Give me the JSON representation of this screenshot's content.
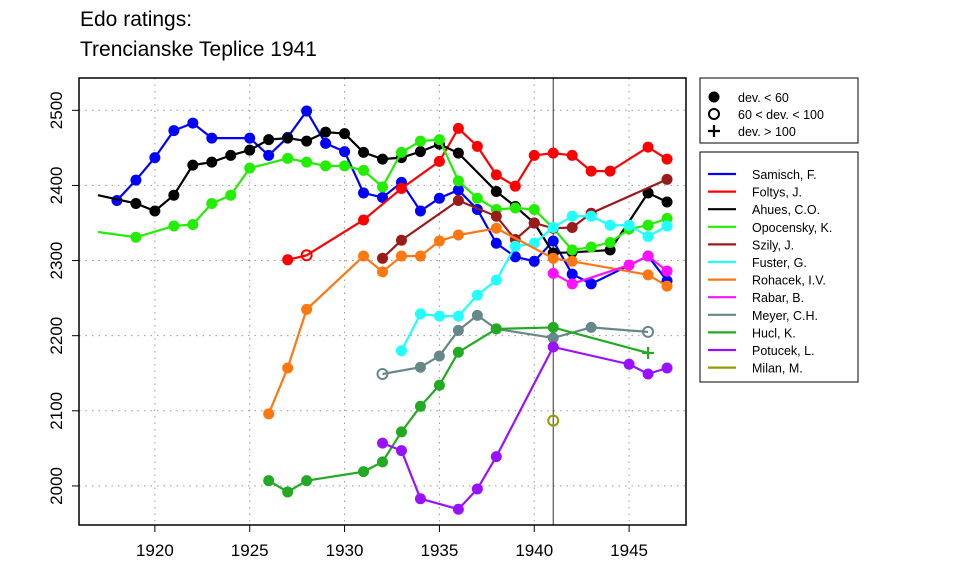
{
  "chart_data": {
    "type": "line",
    "title": [
      "Edo ratings:",
      "Trencianske Teplice 1941"
    ],
    "xlabel": "",
    "ylabel": "",
    "xlim": [
      1916,
      1948
    ],
    "ylim": [
      1948,
      2543
    ],
    "xticks": [
      1920,
      1925,
      1930,
      1935,
      1940,
      1945
    ],
    "yticks": [
      2000,
      2100,
      2200,
      2300,
      2400,
      2500
    ],
    "grid": true,
    "vline": 1941,
    "marker_legend": [
      {
        "marker": "f",
        "label": "dev. < 60"
      },
      {
        "marker": "o",
        "label": "60 < dev. < 100"
      },
      {
        "marker": "+",
        "label": "dev. > 100"
      }
    ],
    "series": [
      {
        "name": "Samisch, F.",
        "color": "#0000ff",
        "points": [
          [
            1918,
            2380,
            "f"
          ],
          [
            1919,
            2407,
            "f"
          ],
          [
            1920,
            2437,
            "f"
          ],
          [
            1921,
            2473,
            "f"
          ],
          [
            1922,
            2483,
            "f"
          ],
          [
            1923,
            2463,
            "f"
          ],
          [
            1925,
            2463,
            "f"
          ],
          [
            1926,
            2440,
            "f"
          ],
          [
            1927,
            2464,
            "f"
          ],
          [
            1928,
            2499,
            "f"
          ],
          [
            1929,
            2456,
            "f"
          ],
          [
            1930,
            2445,
            "f"
          ],
          [
            1931,
            2390,
            "f"
          ],
          [
            1932,
            2384,
            "f"
          ],
          [
            1933,
            2404,
            "f"
          ],
          [
            1934,
            2366,
            "f"
          ],
          [
            1935,
            2383,
            "f"
          ],
          [
            1936,
            2394,
            "f"
          ],
          [
            1937,
            2368,
            "f"
          ],
          [
            1938,
            2323,
            "f"
          ],
          [
            1939,
            2305,
            "f"
          ],
          [
            1940,
            2299,
            "f"
          ],
          [
            1941,
            2326,
            "f"
          ],
          [
            1942,
            2282,
            "f"
          ],
          [
            1943,
            2269,
            "f"
          ],
          [
            1946,
            2306,
            "f"
          ],
          [
            1947,
            2273,
            "f"
          ]
        ]
      },
      {
        "name": "Foltys, J.",
        "color": "#ff0000",
        "points": [
          [
            1927,
            2301,
            "f"
          ],
          [
            1928,
            2307,
            "o"
          ],
          [
            1931,
            2354,
            "f"
          ],
          [
            1933,
            2396,
            "f"
          ],
          [
            1935,
            2432,
            "f"
          ],
          [
            1936,
            2476,
            "f"
          ],
          [
            1937,
            2452,
            "f"
          ],
          [
            1938,
            2414,
            "f"
          ],
          [
            1939,
            2399,
            "f"
          ],
          [
            1940,
            2440,
            "f"
          ],
          [
            1941,
            2443,
            "f"
          ],
          [
            1942,
            2440,
            "f"
          ],
          [
            1943,
            2419,
            "f"
          ],
          [
            1944,
            2419,
            "f"
          ],
          [
            1946,
            2451,
            "f"
          ],
          [
            1947,
            2435,
            "f"
          ]
        ]
      },
      {
        "name": "Ahues, C.O.",
        "color": "#000000",
        "points": [
          [
            1917,
            2387,
            "n"
          ],
          [
            1919,
            2376,
            "f"
          ],
          [
            1920,
            2366,
            "f"
          ],
          [
            1921,
            2387,
            "f"
          ],
          [
            1922,
            2427,
            "f"
          ],
          [
            1923,
            2431,
            "f"
          ],
          [
            1924,
            2440,
            "f"
          ],
          [
            1925,
            2447,
            "f"
          ],
          [
            1926,
            2461,
            "f"
          ],
          [
            1927,
            2463,
            "f"
          ],
          [
            1928,
            2459,
            "f"
          ],
          [
            1929,
            2471,
            "f"
          ],
          [
            1930,
            2469,
            "f"
          ],
          [
            1931,
            2444,
            "f"
          ],
          [
            1932,
            2435,
            "f"
          ],
          [
            1933,
            2437,
            "f"
          ],
          [
            1934,
            2445,
            "f"
          ],
          [
            1935,
            2455,
            "f"
          ],
          [
            1936,
            2443,
            "f"
          ],
          [
            1938,
            2392,
            "f"
          ],
          [
            1939,
            2372,
            "f"
          ],
          [
            1940,
            2350,
            "f"
          ],
          [
            1941,
            2310,
            "f"
          ],
          [
            1942,
            2311,
            "f"
          ],
          [
            1944,
            2314,
            "f"
          ],
          [
            1946,
            2390,
            "f"
          ],
          [
            1947,
            2378,
            "f"
          ]
        ]
      },
      {
        "name": "Opocensky, K.",
        "color": "#22ee00",
        "points": [
          [
            1917,
            2338,
            "n"
          ],
          [
            1919,
            2331,
            "f"
          ],
          [
            1921,
            2346,
            "f"
          ],
          [
            1922,
            2348,
            "f"
          ],
          [
            1923,
            2376,
            "f"
          ],
          [
            1924,
            2387,
            "f"
          ],
          [
            1925,
            2423,
            "f"
          ],
          [
            1927,
            2436,
            "f"
          ],
          [
            1928,
            2431,
            "f"
          ],
          [
            1929,
            2426,
            "f"
          ],
          [
            1930,
            2426,
            "f"
          ],
          [
            1931,
            2420,
            "f"
          ],
          [
            1932,
            2398,
            "f"
          ],
          [
            1933,
            2444,
            "f"
          ],
          [
            1934,
            2459,
            "f"
          ],
          [
            1935,
            2461,
            "f"
          ],
          [
            1936,
            2406,
            "f"
          ],
          [
            1937,
            2383,
            "f"
          ],
          [
            1938,
            2368,
            "f"
          ],
          [
            1939,
            2370,
            "f"
          ],
          [
            1940,
            2368,
            "f"
          ],
          [
            1941,
            2343,
            "f"
          ],
          [
            1942,
            2314,
            "f"
          ],
          [
            1943,
            2318,
            "f"
          ],
          [
            1944,
            2324,
            "f"
          ],
          [
            1945,
            2342,
            "f"
          ],
          [
            1946,
            2347,
            "f"
          ],
          [
            1947,
            2356,
            "f"
          ]
        ]
      },
      {
        "name": "Szily, J.",
        "color": "#9b1b1b",
        "points": [
          [
            1932,
            2303,
            "f"
          ],
          [
            1933,
            2327,
            "f"
          ],
          [
            1936,
            2380,
            "f"
          ],
          [
            1938,
            2359,
            "f"
          ],
          [
            1939,
            2328,
            "f"
          ],
          [
            1940,
            2350,
            "f"
          ],
          [
            1941,
            2343,
            "f"
          ],
          [
            1942,
            2344,
            "f"
          ],
          [
            1943,
            2363,
            "f"
          ],
          [
            1947,
            2408,
            "f"
          ]
        ]
      },
      {
        "name": "Fuster, G.",
        "color": "#22ffff",
        "points": [
          [
            1933,
            2180,
            "f"
          ],
          [
            1934,
            2229,
            "f"
          ],
          [
            1935,
            2226,
            "f"
          ],
          [
            1936,
            2226,
            "f"
          ],
          [
            1937,
            2254,
            "f"
          ],
          [
            1938,
            2274,
            "f"
          ],
          [
            1939,
            2319,
            "f"
          ],
          [
            1940,
            2323,
            "f"
          ],
          [
            1941,
            2344,
            "f"
          ],
          [
            1942,
            2359,
            "f"
          ],
          [
            1943,
            2359,
            "f"
          ],
          [
            1944,
            2347,
            "f"
          ],
          [
            1945,
            2347,
            "f"
          ],
          [
            1946,
            2332,
            "f"
          ],
          [
            1947,
            2346,
            "f"
          ]
        ]
      },
      {
        "name": "Rohacek, I.V.",
        "color": "#ff7711",
        "points": [
          [
            1926,
            2096,
            "f"
          ],
          [
            1927,
            2157,
            "f"
          ],
          [
            1928,
            2235,
            "f"
          ],
          [
            1931,
            2306,
            "f"
          ],
          [
            1932,
            2285,
            "f"
          ],
          [
            1933,
            2306,
            "f"
          ],
          [
            1934,
            2306,
            "f"
          ],
          [
            1935,
            2326,
            "f"
          ],
          [
            1936,
            2334,
            "f"
          ],
          [
            1938,
            2343,
            "f"
          ],
          [
            1941,
            2303,
            "f"
          ],
          [
            1942,
            2299,
            "f"
          ],
          [
            1946,
            2281,
            "f"
          ],
          [
            1947,
            2266,
            "f"
          ]
        ]
      },
      {
        "name": "Rabar, B.",
        "color": "#ff11ff",
        "points": [
          [
            1941,
            2283,
            "f"
          ],
          [
            1942,
            2269,
            "f"
          ],
          [
            1945,
            2294,
            "f"
          ],
          [
            1946,
            2306,
            "f"
          ],
          [
            1947,
            2286,
            "f"
          ]
        ]
      },
      {
        "name": "Meyer, C.H.",
        "color": "#668888",
        "points": [
          [
            1932,
            2149,
            "o"
          ],
          [
            1934,
            2158,
            "f"
          ],
          [
            1935,
            2173,
            "f"
          ],
          [
            1936,
            2207,
            "f"
          ],
          [
            1937,
            2227,
            "f"
          ],
          [
            1938,
            2209,
            "f"
          ],
          [
            1941,
            2197,
            "f"
          ],
          [
            1943,
            2211,
            "f"
          ],
          [
            1946,
            2205,
            "o"
          ]
        ]
      },
      {
        "name": "Hucl, K.",
        "color": "#22aa22",
        "points": [
          [
            1926,
            2007,
            "f"
          ],
          [
            1927,
            1992,
            "f"
          ],
          [
            1928,
            2007,
            "f"
          ],
          [
            1931,
            2019,
            "f"
          ],
          [
            1932,
            2032,
            "f"
          ],
          [
            1933,
            2072,
            "f"
          ],
          [
            1934,
            2106,
            "f"
          ],
          [
            1935,
            2134,
            "f"
          ],
          [
            1936,
            2178,
            "f"
          ],
          [
            1938,
            2209,
            "f"
          ],
          [
            1941,
            2211,
            "f"
          ],
          [
            1946,
            2177,
            "+"
          ]
        ]
      },
      {
        "name": "Potucek, L.",
        "color": "#9911ff",
        "points": [
          [
            1932,
            2057,
            "f"
          ],
          [
            1933,
            2047,
            "f"
          ],
          [
            1934,
            1983,
            "f"
          ],
          [
            1936,
            1969,
            "f"
          ],
          [
            1937,
            1996,
            "f"
          ],
          [
            1938,
            2039,
            "f"
          ],
          [
            1941,
            2185,
            "f"
          ],
          [
            1945,
            2162,
            "f"
          ],
          [
            1946,
            2149,
            "f"
          ],
          [
            1947,
            2157,
            "f"
          ]
        ]
      },
      {
        "name": "Milan, M.",
        "color": "#999900",
        "points": [
          [
            1941,
            2087,
            "o"
          ]
        ]
      }
    ]
  }
}
